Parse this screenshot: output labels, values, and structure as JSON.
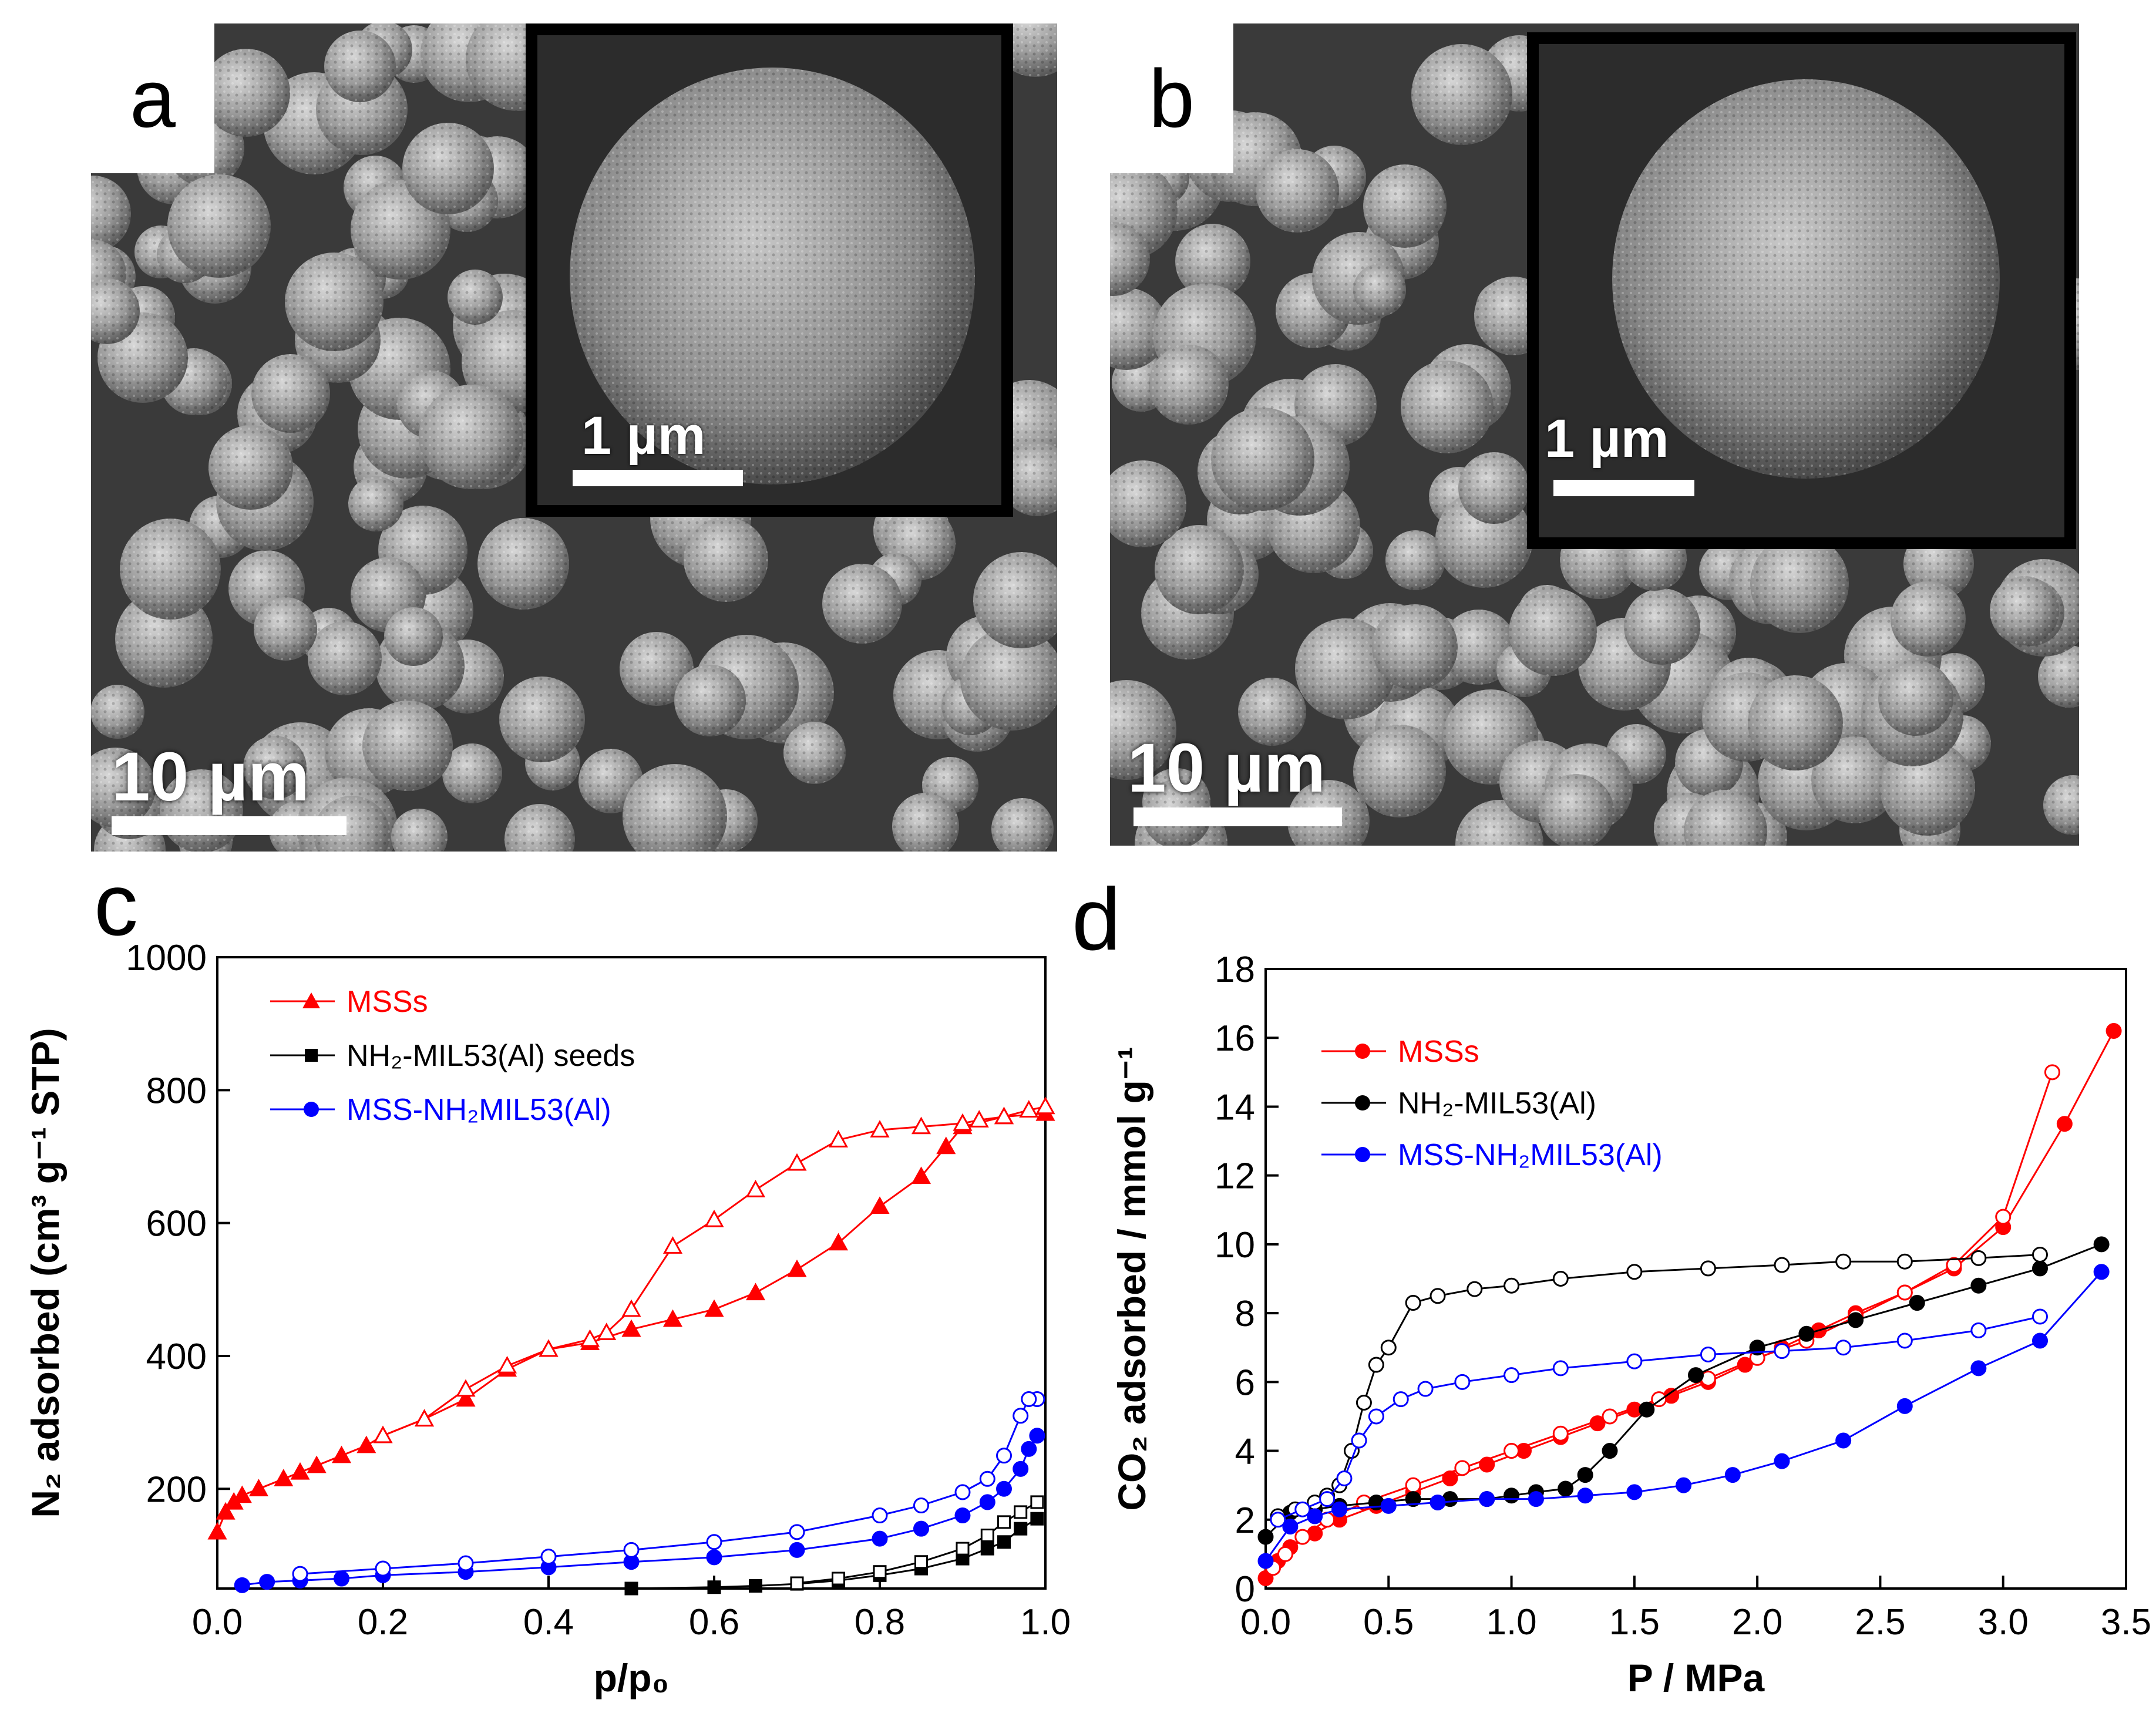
{
  "panels": {
    "a": {
      "letter": "a",
      "scale_main": "10 µm",
      "scale_inset": "1 µm"
    },
    "b": {
      "letter": "b",
      "scale_main": "10 µm",
      "scale_inset": "1 µm"
    },
    "c": {
      "letter": "c"
    },
    "d": {
      "letter": "d"
    }
  },
  "chart_data": [
    {
      "panel": "c",
      "type": "line",
      "xlabel": "p/p₀",
      "ylabel": "N₂ adsorbed (cm³ g⁻¹ STP)",
      "xlim": [
        0,
        1.0
      ],
      "ylim": [
        50,
        1000
      ],
      "xticks": [
        "0.0",
        "0.2",
        "0.4",
        "0.6",
        "0.8",
        "1.0"
      ],
      "yticks": [
        "200",
        "400",
        "600",
        "800",
        "1000"
      ],
      "legend": [
        {
          "label": "MSSs",
          "color": "#ff0000",
          "marker": "triangle"
        },
        {
          "label": "NH₂-MIL53(Al) seeds",
          "color": "#000000",
          "marker": "square"
        },
        {
          "label": "MSS-NH₂MIL53(Al)",
          "color": "#0000ff",
          "marker": "circle"
        }
      ],
      "series": [
        {
          "name": "MSSs",
          "branch": "adsorption",
          "color": "#ff0000",
          "marker": "triangle",
          "filled": true,
          "x": [
            0.0,
            0.01,
            0.02,
            0.03,
            0.05,
            0.08,
            0.1,
            0.12,
            0.15,
            0.18,
            0.2,
            0.25,
            0.3,
            0.35,
            0.4,
            0.45,
            0.5,
            0.55,
            0.6,
            0.65,
            0.7,
            0.75,
            0.8,
            0.85,
            0.88,
            0.9,
            0.95,
            1.0
          ],
          "y": [
            135,
            165,
            180,
            190,
            200,
            215,
            225,
            235,
            250,
            265,
            280,
            305,
            335,
            380,
            410,
            420,
            440,
            455,
            470,
            495,
            530,
            570,
            625,
            670,
            715,
            745,
            760,
            765
          ]
        },
        {
          "name": "MSSs",
          "branch": "desorption",
          "color": "#ff0000",
          "marker": "triangle",
          "filled": false,
          "x": [
            1.0,
            0.98,
            0.95,
            0.92,
            0.9,
            0.85,
            0.8,
            0.75,
            0.7,
            0.65,
            0.6,
            0.55,
            0.5,
            0.47,
            0.45,
            0.4,
            0.35,
            0.3,
            0.25,
            0.2
          ],
          "y": [
            775,
            770,
            760,
            755,
            750,
            745,
            740,
            725,
            690,
            650,
            605,
            565,
            470,
            435,
            425,
            410,
            385,
            350,
            305,
            280
          ]
        },
        {
          "name": "NH₂-MIL53(Al) seeds",
          "branch": "adsorption",
          "color": "#000000",
          "marker": "square",
          "filled": true,
          "x": [
            0.5,
            0.6,
            0.65,
            0.7,
            0.75,
            0.8,
            0.85,
            0.9,
            0.93,
            0.95,
            0.97,
            0.99
          ],
          "y": [
            50,
            52,
            54,
            57,
            62,
            70,
            80,
            95,
            110,
            120,
            140,
            155
          ]
        },
        {
          "name": "NH₂-MIL53(Al) seeds",
          "branch": "desorption",
          "color": "#000000",
          "marker": "square",
          "filled": false,
          "x": [
            0.99,
            0.97,
            0.95,
            0.93,
            0.9,
            0.85,
            0.8,
            0.75,
            0.7
          ],
          "y": [
            180,
            165,
            150,
            130,
            110,
            90,
            75,
            65,
            58
          ]
        },
        {
          "name": "MSS-NH₂MIL53(Al)",
          "branch": "adsorption",
          "color": "#0000ff",
          "marker": "circle",
          "filled": true,
          "x": [
            0.03,
            0.06,
            0.1,
            0.15,
            0.2,
            0.3,
            0.4,
            0.5,
            0.6,
            0.7,
            0.8,
            0.85,
            0.9,
            0.93,
            0.95,
            0.97,
            0.98,
            0.99
          ],
          "y": [
            55,
            60,
            62,
            65,
            70,
            75,
            82,
            90,
            97,
            108,
            125,
            140,
            160,
            180,
            200,
            230,
            260,
            280
          ]
        },
        {
          "name": "MSS-NH₂MIL53(Al)",
          "branch": "desorption",
          "color": "#0000ff",
          "marker": "circle",
          "filled": false,
          "x": [
            0.99,
            0.98,
            0.97,
            0.95,
            0.93,
            0.9,
            0.85,
            0.8,
            0.7,
            0.6,
            0.5,
            0.4,
            0.3,
            0.2,
            0.1
          ],
          "y": [
            335,
            335,
            310,
            250,
            215,
            195,
            175,
            160,
            135,
            120,
            108,
            98,
            88,
            80,
            72
          ]
        }
      ]
    },
    {
      "panel": "d",
      "type": "line",
      "xlabel": "P / MPa",
      "ylabel": "CO₂ adsorbed / mmol g⁻¹",
      "xlim": [
        0,
        3.5
      ],
      "ylim": [
        0,
        18
      ],
      "xticks": [
        "0.0",
        "0.5",
        "1.0",
        "1.5",
        "2.0",
        "2.5",
        "3.0",
        "3.5"
      ],
      "yticks": [
        "0",
        "2",
        "4",
        "6",
        "8",
        "10",
        "12",
        "14",
        "16",
        "18"
      ],
      "legend": [
        {
          "label": "MSSs",
          "color": "#ff0000",
          "marker": "circle"
        },
        {
          "label": "NH₂-MIL53(Al)",
          "color": "#000000",
          "marker": "circle"
        },
        {
          "label": "MSS-NH₂MIL53(Al)",
          "color": "#0000ff",
          "marker": "circle"
        }
      ],
      "series": [
        {
          "name": "MSSs",
          "branch": "adsorption",
          "color": "#ff0000",
          "filled": true,
          "x": [
            0.0,
            0.05,
            0.1,
            0.2,
            0.3,
            0.45,
            0.6,
            0.75,
            0.9,
            1.05,
            1.2,
            1.35,
            1.5,
            1.65,
            1.8,
            1.95,
            2.1,
            2.25,
            2.4,
            2.6,
            2.8,
            3.0,
            3.25,
            3.45
          ],
          "y": [
            0.3,
            0.8,
            1.2,
            1.6,
            2.0,
            2.4,
            2.8,
            3.2,
            3.6,
            4.0,
            4.4,
            4.8,
            5.2,
            5.6,
            6.0,
            6.5,
            7.0,
            7.5,
            8.0,
            8.6,
            9.3,
            10.5,
            13.5,
            16.2
          ]
        },
        {
          "name": "MSSs",
          "branch": "desorption",
          "color": "#ff0000",
          "filled": false,
          "x": [
            3.2,
            3.0,
            2.8,
            2.6,
            2.4,
            2.2,
            2.0,
            1.8,
            1.6,
            1.4,
            1.2,
            1.0,
            0.8,
            0.6,
            0.4,
            0.25,
            0.15,
            0.08,
            0.03
          ],
          "y": [
            15.0,
            10.8,
            9.4,
            8.6,
            7.9,
            7.2,
            6.7,
            6.1,
            5.5,
            5.0,
            4.5,
            4.0,
            3.5,
            3.0,
            2.5,
            2.0,
            1.5,
            1.0,
            0.6
          ]
        },
        {
          "name": "NH₂-MIL53(Al)",
          "branch": "adsorption",
          "color": "#000000",
          "filled": true,
          "x": [
            0.0,
            0.1,
            0.2,
            0.3,
            0.45,
            0.6,
            0.75,
            0.9,
            1.0,
            1.1,
            1.22,
            1.3,
            1.4,
            1.55,
            1.75,
            2.0,
            2.2,
            2.4,
            2.65,
            2.9,
            3.15,
            3.4
          ],
          "y": [
            1.5,
            2.2,
            2.3,
            2.4,
            2.5,
            2.6,
            2.6,
            2.6,
            2.7,
            2.8,
            2.9,
            3.3,
            4.0,
            5.2,
            6.2,
            7.0,
            7.4,
            7.8,
            8.3,
            8.8,
            9.3,
            10.0
          ]
        },
        {
          "name": "NH₂-MIL53(Al)",
          "branch": "desorption",
          "color": "#000000",
          "filled": false,
          "x": [
            3.15,
            2.9,
            2.6,
            2.35,
            2.1,
            1.8,
            1.5,
            1.2,
            1.0,
            0.85,
            0.7,
            0.6,
            0.5,
            0.45,
            0.4,
            0.35,
            0.3,
            0.25,
            0.2,
            0.12,
            0.05
          ],
          "y": [
            9.7,
            9.6,
            9.5,
            9.5,
            9.4,
            9.3,
            9.2,
            9.0,
            8.8,
            8.7,
            8.5,
            8.3,
            7.0,
            6.5,
            5.4,
            4.0,
            3.0,
            2.7,
            2.5,
            2.3,
            2.1
          ]
        },
        {
          "name": "MSS-NH₂MIL53(Al)",
          "branch": "adsorption",
          "color": "#0000ff",
          "filled": true,
          "x": [
            0.0,
            0.1,
            0.2,
            0.3,
            0.5,
            0.7,
            0.9,
            1.1,
            1.3,
            1.5,
            1.7,
            1.9,
            2.1,
            2.35,
            2.6,
            2.9,
            3.15,
            3.4
          ],
          "y": [
            0.8,
            1.8,
            2.1,
            2.3,
            2.4,
            2.5,
            2.6,
            2.6,
            2.7,
            2.8,
            3.0,
            3.3,
            3.7,
            4.3,
            5.3,
            6.4,
            7.2,
            9.2
          ]
        },
        {
          "name": "MSS-NH₂MIL53(Al)",
          "branch": "desorption",
          "color": "#0000ff",
          "filled": false,
          "x": [
            3.15,
            2.9,
            2.6,
            2.35,
            2.1,
            1.8,
            1.5,
            1.2,
            1.0,
            0.8,
            0.65,
            0.55,
            0.45,
            0.38,
            0.32,
            0.25,
            0.15,
            0.05
          ],
          "y": [
            7.9,
            7.5,
            7.2,
            7.0,
            6.9,
            6.8,
            6.6,
            6.4,
            6.2,
            6.0,
            5.8,
            5.5,
            5.0,
            4.3,
            3.2,
            2.6,
            2.3,
            2.0
          ]
        }
      ]
    }
  ]
}
